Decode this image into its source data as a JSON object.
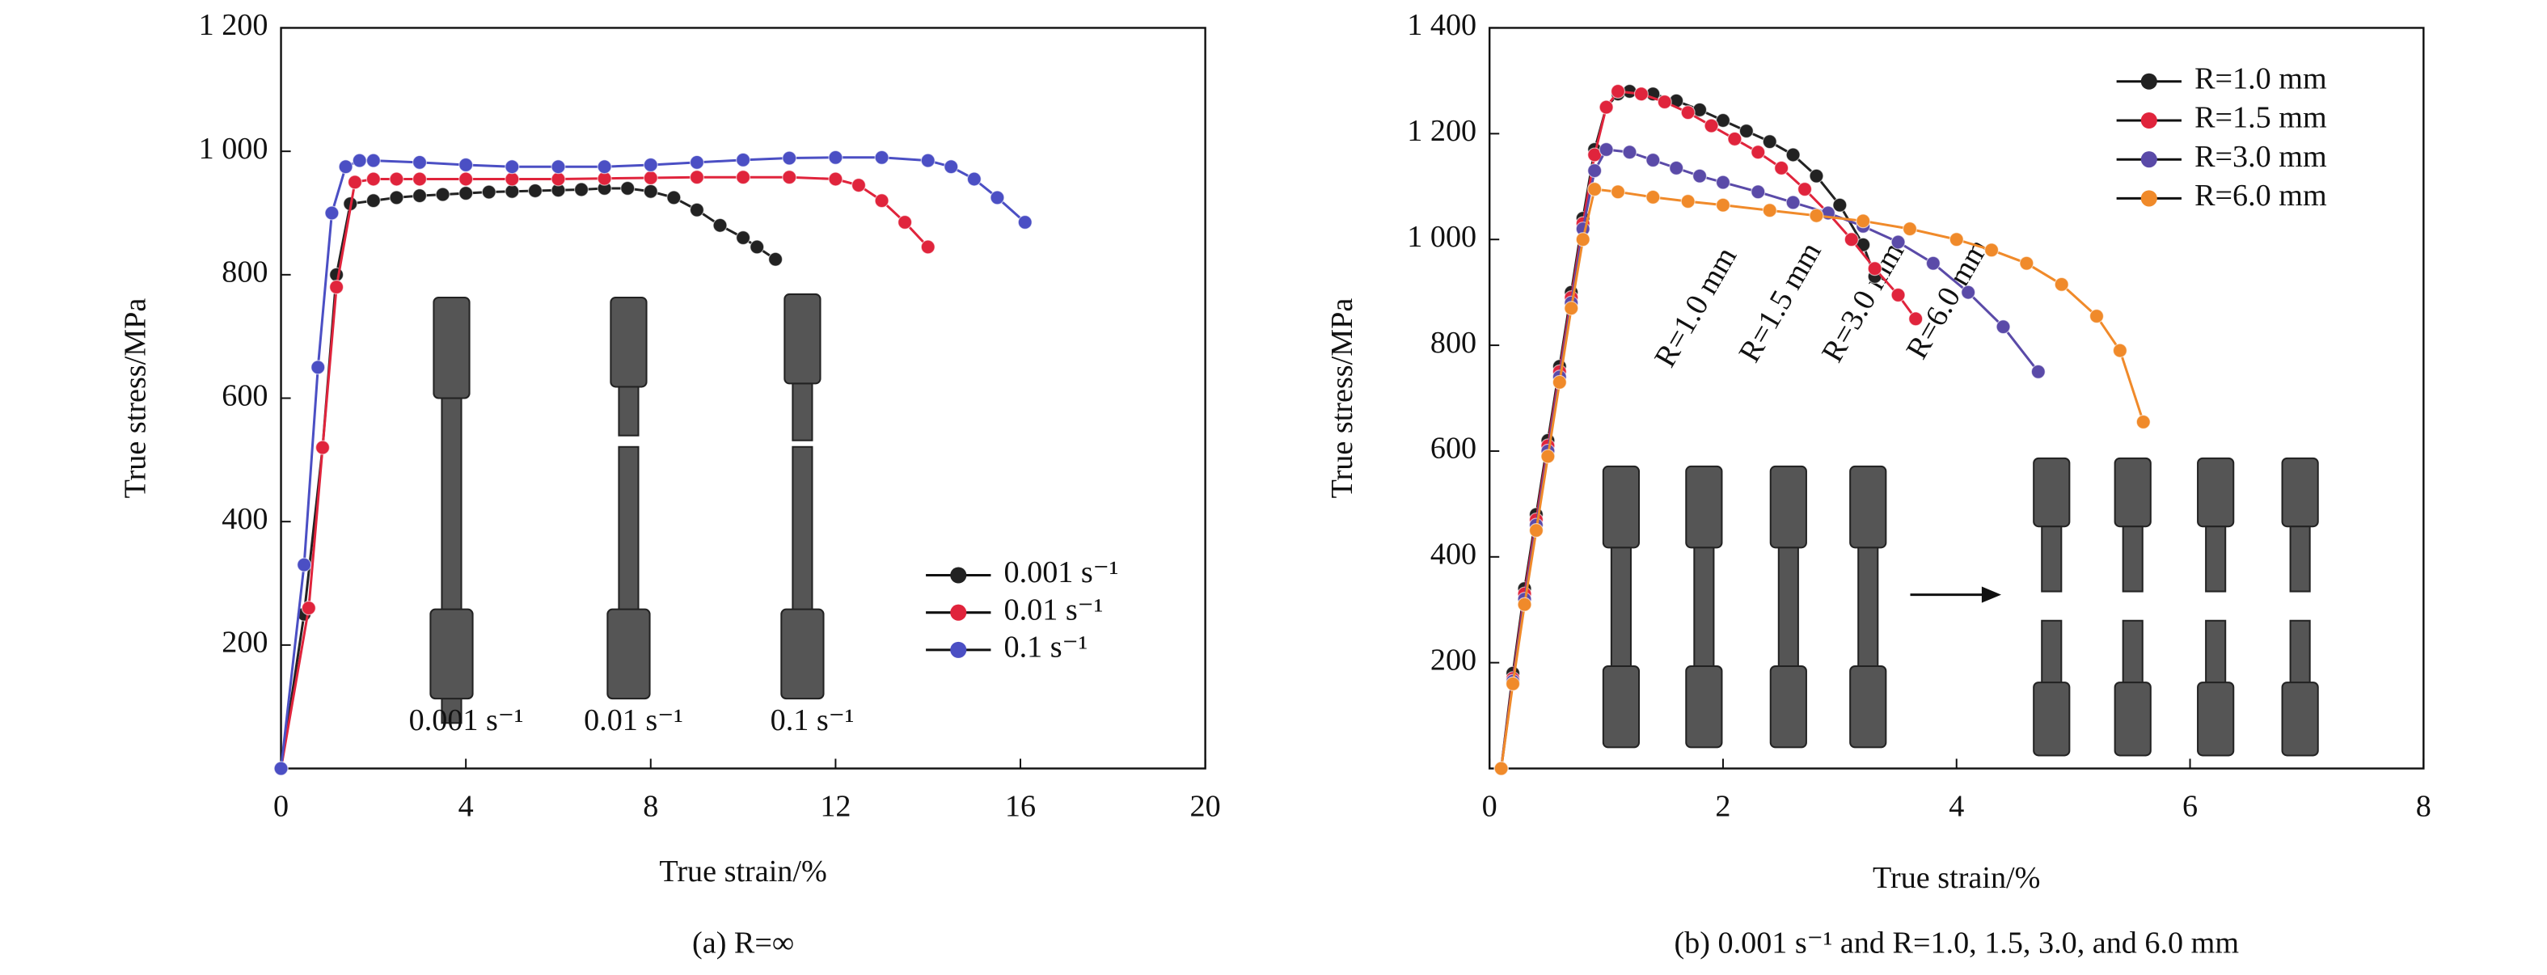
{
  "chart_data": [
    {
      "type": "line",
      "caption": "(a) R=∞",
      "x_label": "True strain/%",
      "y_label": "True stress/MPa",
      "xlim": [
        0,
        20
      ],
      "xticks": [
        0,
        4,
        8,
        12,
        16,
        20
      ],
      "ylim": [
        0,
        1200
      ],
      "yticks": [
        200,
        400,
        600,
        800,
        {
          "value": 1000,
          "label": "1 000"
        },
        {
          "value": 1200,
          "label": "1 200"
        }
      ],
      "legend": "lower right",
      "annotations": [
        "0.001 s⁻¹",
        "0.01 s⁻¹",
        "0.1 s⁻¹"
      ],
      "series": [
        {
          "name": "0.001 s⁻¹",
          "color": "#222222",
          "x": [
            0,
            0.5,
            0.9,
            1.2,
            1.5,
            2,
            2.5,
            3,
            3.5,
            4,
            4.5,
            5,
            5.5,
            6,
            6.5,
            7,
            7.5,
            8,
            8.5,
            9,
            9.5,
            10,
            10.3,
            10.7
          ],
          "values": [
            0,
            250,
            520,
            800,
            915,
            920,
            925,
            928,
            930,
            932,
            934,
            935,
            936,
            937,
            938,
            940,
            940,
            935,
            925,
            905,
            880,
            860,
            845,
            825
          ]
        },
        {
          "name": "0.01 s⁻¹",
          "color": "#e0243c",
          "x": [
            0,
            0.6,
            0.9,
            1.2,
            1.6,
            2,
            2.5,
            3,
            4,
            5,
            6,
            7,
            8,
            9,
            10,
            11,
            12,
            12.5,
            13,
            13.5,
            14
          ],
          "values": [
            0,
            260,
            520,
            780,
            950,
            955,
            955,
            955,
            955,
            955,
            955,
            956,
            957,
            958,
            958,
            958,
            955,
            945,
            920,
            885,
            845
          ]
        },
        {
          "name": "0.1 s⁻¹",
          "color": "#4b4fc4",
          "x": [
            0,
            0.5,
            0.8,
            1.1,
            1.4,
            1.7,
            2,
            3,
            4,
            5,
            6,
            7,
            8,
            9,
            10,
            11,
            12,
            13,
            14,
            14.5,
            15,
            15.5,
            16.1
          ],
          "values": [
            0,
            330,
            650,
            900,
            975,
            985,
            985,
            982,
            978,
            975,
            975,
            975,
            978,
            982,
            986,
            989,
            990,
            990,
            985,
            975,
            955,
            925,
            885
          ]
        }
      ]
    },
    {
      "type": "line",
      "caption": "(b) 0.001 s⁻¹ and R=1.0, 1.5, 3.0, and 6.0 mm",
      "x_label": "True strain/%",
      "y_label": "True stress/MPa",
      "xlim": [
        0,
        8
      ],
      "xticks": [
        0,
        2,
        4,
        6,
        8
      ],
      "ylim": [
        0,
        1400
      ],
      "yticks": [
        200,
        400,
        600,
        800,
        {
          "value": 1000,
          "label": "1 000"
        },
        {
          "value": 1200,
          "label": "1 200"
        },
        {
          "value": 1400,
          "label": "1 400"
        }
      ],
      "legend": "upper right",
      "annotations": [
        "R=1.0 mm",
        "R=1.5 mm",
        "R=3.0 mm",
        "R=6.0 mm"
      ],
      "series": [
        {
          "name": "R=1.0 mm",
          "color": "#222222",
          "x": [
            0.1,
            0.2,
            0.3,
            0.4,
            0.5,
            0.6,
            0.7,
            0.8,
            0.9,
            1.0,
            1.1,
            1.2,
            1.4,
            1.6,
            1.8,
            2.0,
            2.2,
            2.4,
            2.6,
            2.8,
            3.0,
            3.2,
            3.3
          ],
          "values": [
            0,
            180,
            340,
            480,
            620,
            760,
            900,
            1040,
            1170,
            1250,
            1275,
            1280,
            1275,
            1262,
            1245,
            1225,
            1205,
            1185,
            1160,
            1120,
            1065,
            990,
            930
          ]
        },
        {
          "name": "R=1.5 mm",
          "color": "#e0243c",
          "x": [
            0.1,
            0.2,
            0.3,
            0.4,
            0.5,
            0.6,
            0.7,
            0.8,
            0.9,
            1.0,
            1.1,
            1.3,
            1.5,
            1.7,
            1.9,
            2.1,
            2.3,
            2.5,
            2.7,
            2.9,
            3.1,
            3.3,
            3.5,
            3.65
          ],
          "values": [
            0,
            170,
            330,
            470,
            610,
            750,
            890,
            1030,
            1160,
            1250,
            1280,
            1275,
            1260,
            1240,
            1215,
            1190,
            1165,
            1135,
            1095,
            1050,
            1000,
            945,
            895,
            850
          ]
        },
        {
          "name": "R=3.0 mm",
          "color": "#5a4aa8",
          "x": [
            0.1,
            0.2,
            0.3,
            0.4,
            0.5,
            0.6,
            0.7,
            0.8,
            0.9,
            1.0,
            1.2,
            1.4,
            1.6,
            1.8,
            2.0,
            2.3,
            2.6,
            2.9,
            3.2,
            3.5,
            3.8,
            4.1,
            4.4,
            4.7
          ],
          "values": [
            0,
            165,
            320,
            460,
            600,
            740,
            880,
            1020,
            1130,
            1170,
            1165,
            1150,
            1135,
            1120,
            1108,
            1090,
            1070,
            1050,
            1025,
            995,
            955,
            900,
            835,
            750
          ]
        },
        {
          "name": "R=6.0 mm",
          "color": "#f08a2a",
          "x": [
            0.1,
            0.2,
            0.3,
            0.4,
            0.5,
            0.6,
            0.7,
            0.8,
            0.9,
            1.1,
            1.4,
            1.7,
            2.0,
            2.4,
            2.8,
            3.2,
            3.6,
            4.0,
            4.3,
            4.6,
            4.9,
            5.2,
            5.4,
            5.6
          ],
          "values": [
            0,
            160,
            310,
            450,
            590,
            730,
            870,
            1000,
            1095,
            1090,
            1080,
            1072,
            1065,
            1055,
            1045,
            1035,
            1020,
            1000,
            980,
            955,
            915,
            855,
            790,
            655
          ]
        }
      ]
    }
  ]
}
